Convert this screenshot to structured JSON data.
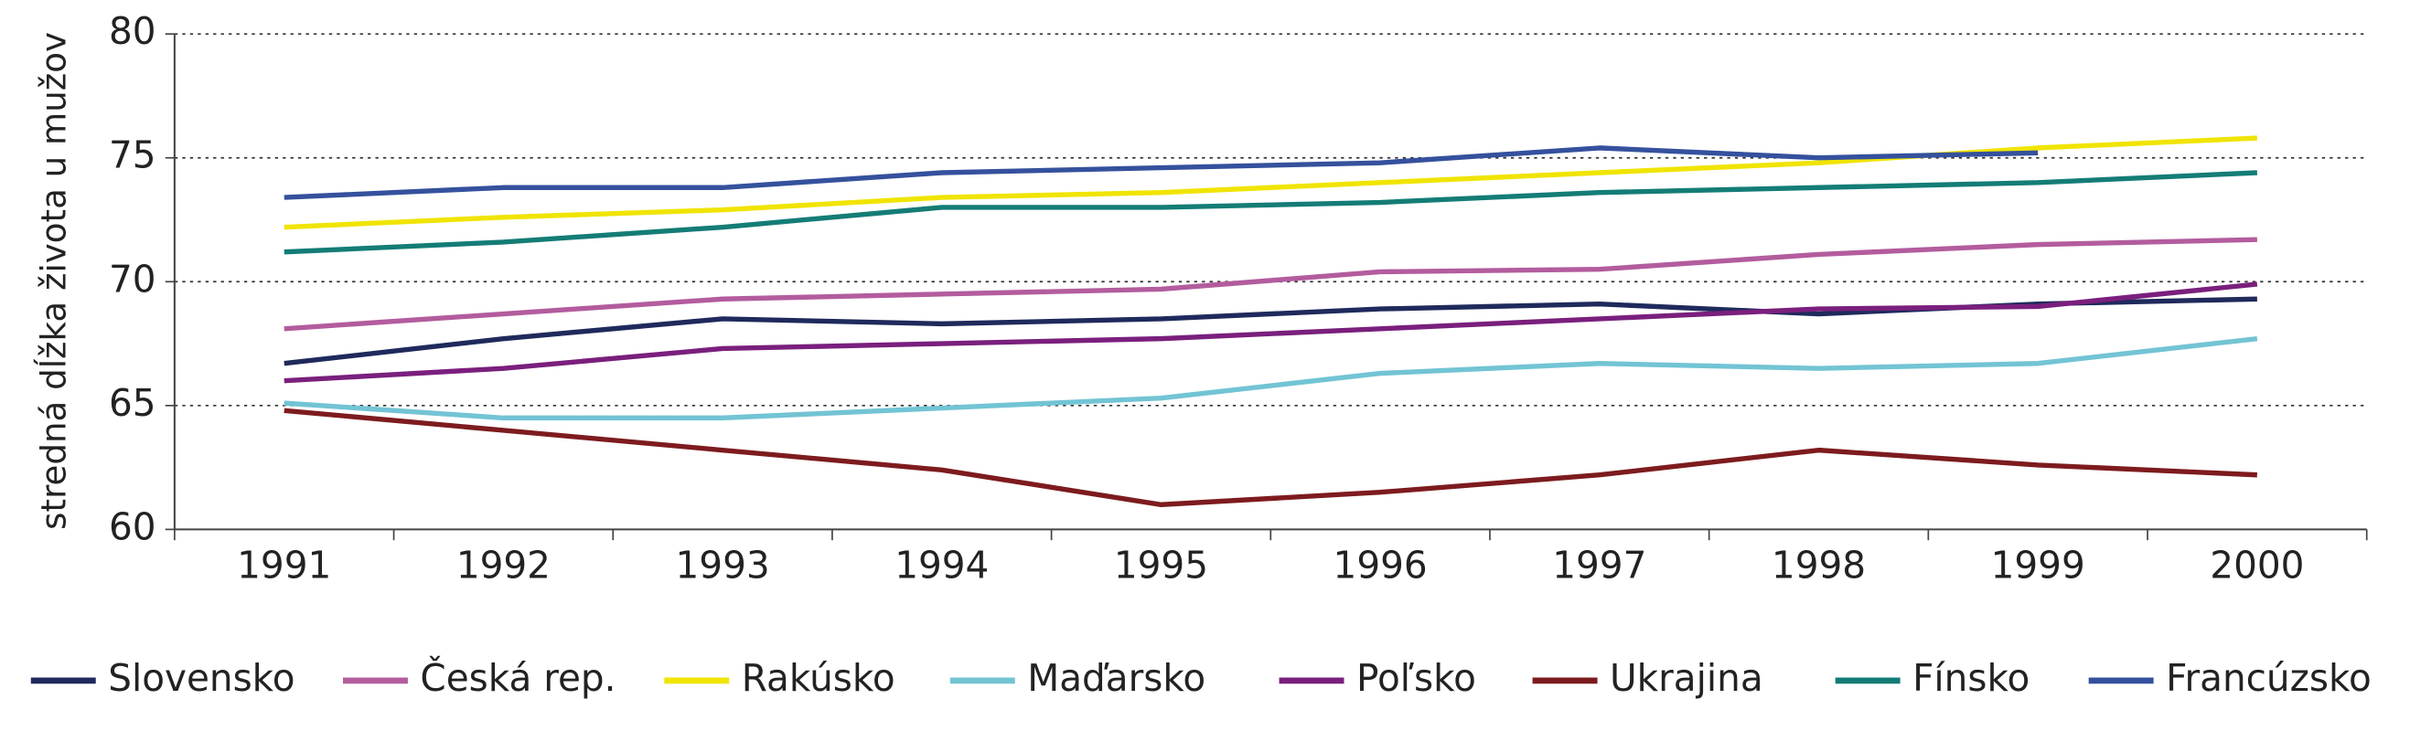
{
  "chart_data": {
    "type": "line",
    "ylabel": "stredná dĺžka života u mužov",
    "categories": [
      "1991",
      "1992",
      "1993",
      "1994",
      "1995",
      "1996",
      "1997",
      "1998",
      "1999",
      "2000"
    ],
    "series": [
      {
        "name": "Slovensko",
        "color": "#1f2a5c",
        "values": [
          66.7,
          67.7,
          68.5,
          68.3,
          68.5,
          68.9,
          69.1,
          68.7,
          69.1,
          69.3
        ]
      },
      {
        "name": "Česká rep.",
        "color": "#b35c9e",
        "values": [
          68.1,
          68.7,
          69.3,
          69.5,
          69.7,
          70.4,
          70.5,
          71.1,
          71.5,
          71.7
        ]
      },
      {
        "name": "Rakúsko",
        "color": "#f0e400",
        "values": [
          72.2,
          72.6,
          72.9,
          73.4,
          73.6,
          74.0,
          74.4,
          74.8,
          75.4,
          75.8
        ]
      },
      {
        "name": "Maďarsko",
        "color": "#72c4d4",
        "values": [
          65.1,
          64.5,
          64.5,
          64.9,
          65.3,
          66.3,
          66.7,
          66.5,
          66.7,
          67.7
        ]
      },
      {
        "name": "Poľsko",
        "color": "#7a1f7d",
        "values": [
          66.0,
          66.5,
          67.3,
          67.5,
          67.7,
          68.1,
          68.5,
          68.9,
          69.0,
          69.9
        ]
      },
      {
        "name": "Ukrajina",
        "color": "#7d1b1e",
        "values": [
          64.8,
          64.0,
          63.2,
          62.4,
          61.0,
          61.5,
          62.2,
          63.2,
          62.6,
          62.2
        ]
      },
      {
        "name": "Fínsko",
        "color": "#147c76",
        "values": [
          71.2,
          71.6,
          72.2,
          73.0,
          73.0,
          73.2,
          73.6,
          73.8,
          74.0,
          74.4
        ]
      },
      {
        "name": "Francúzsko",
        "color": "#35519d",
        "values": [
          73.4,
          73.8,
          73.8,
          74.4,
          74.6,
          74.8,
          75.4,
          75.0,
          75.2,
          null
        ]
      }
    ],
    "ylim": [
      60,
      80
    ],
    "yticks": [
      60,
      65,
      70,
      75,
      80
    ],
    "grid": true,
    "legend": "bottom"
  }
}
